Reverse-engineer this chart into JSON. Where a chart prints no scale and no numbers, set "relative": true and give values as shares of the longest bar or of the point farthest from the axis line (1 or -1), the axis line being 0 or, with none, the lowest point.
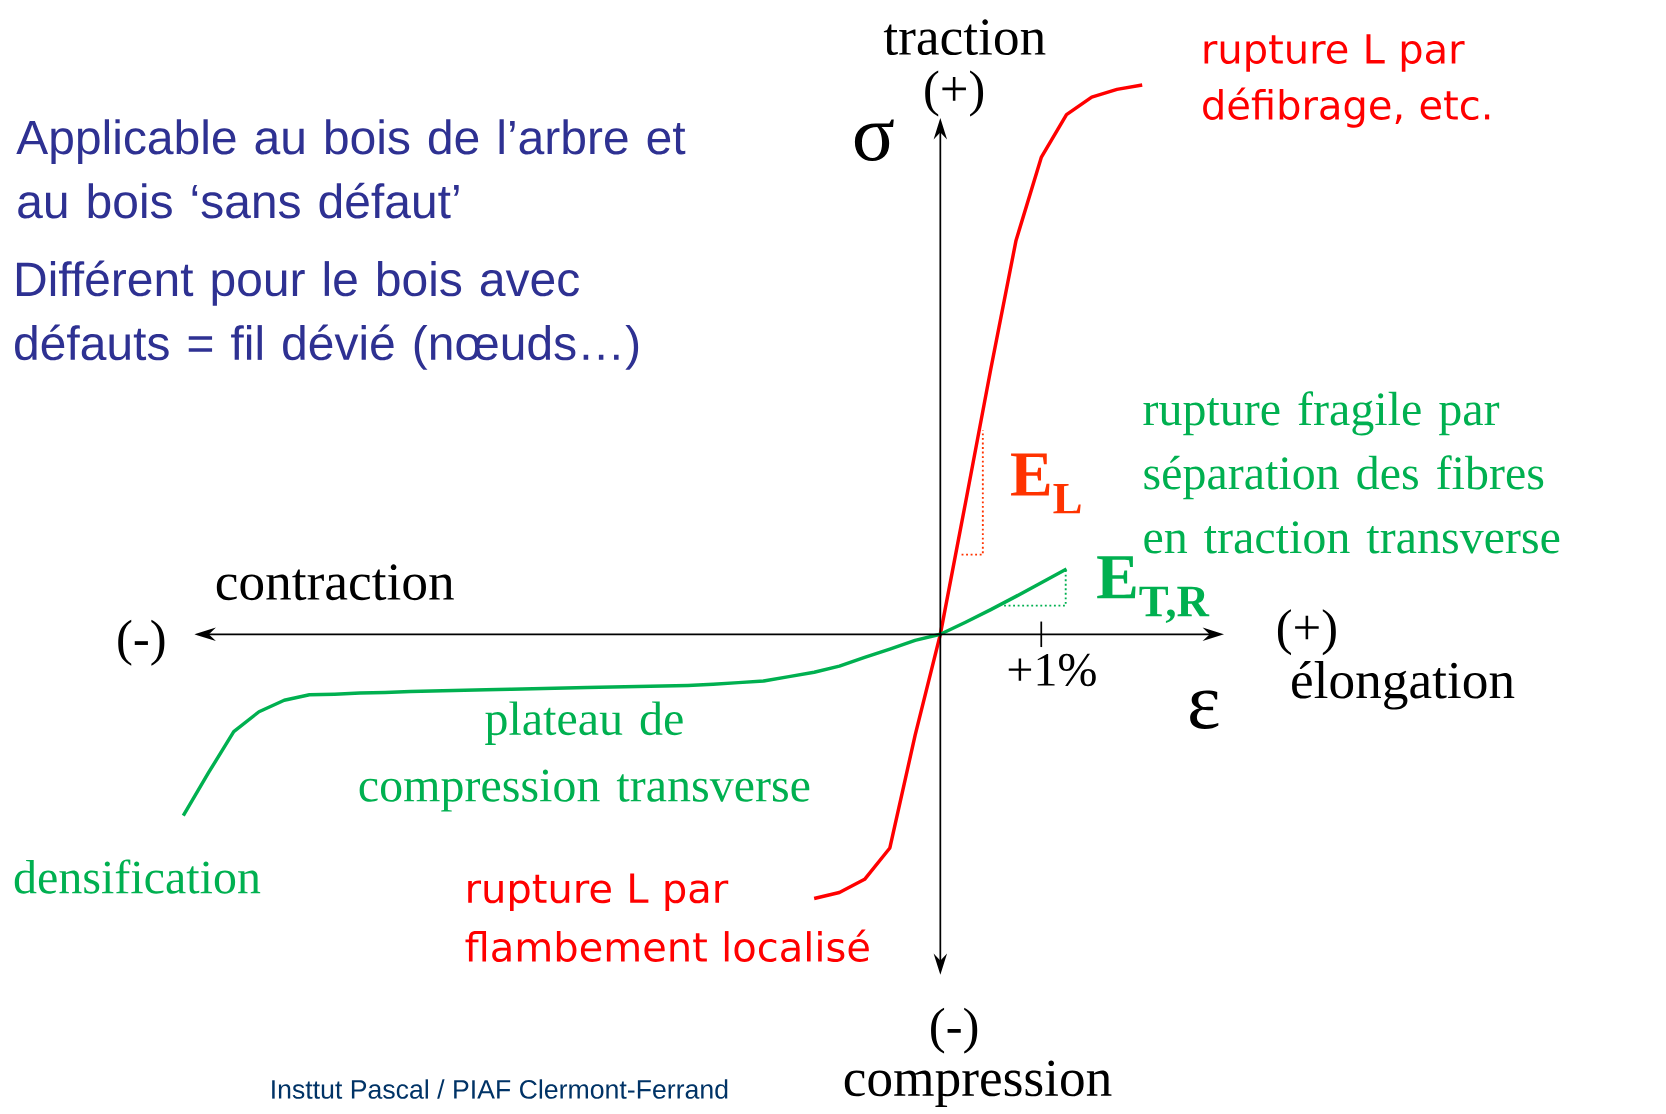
{
  "chart_data": {
    "type": "line",
    "relative": true,
    "xlabel": "ε",
    "ylabel": "σ",
    "categories": [
      null,
      null,
      null,
      null,
      null,
      null,
      null,
      null,
      null,
      null,
      null,
      null,
      null,
      null,
      null,
      null,
      null,
      null,
      null,
      null,
      null,
      null,
      null,
      null,
      null,
      null,
      null,
      null,
      null,
      null,
      null,
      null,
      null,
      null,
      null,
      null,
      null,
      null,
      null,
      null,
      null,
      null
    ],
    "series": [
      {
        "color": "#ff0000",
        "values": [
          null,
          null,
          null,
          null,
          null,
          null,
          null,
          null,
          null,
          null,
          null,
          null,
          null,
          null,
          null,
          null,
          null,
          null,
          null,
          null,
          null,
          null,
          null,
          null,
          null,
          -0.481,
          -0.47,
          -0.446,
          -0.389,
          -0.184,
          0,
          0.24,
          0.483,
          0.717,
          0.868,
          0.946,
          0.978,
          0.992,
          1.0,
          null,
          null,
          null
        ]
      },
      {
        "color": "#00b050",
        "values": [
          -0.33,
          -0.252,
          -0.177,
          -0.141,
          -0.12,
          -0.11,
          -0.109,
          -0.107,
          -0.106,
          -0.104,
          -0.103,
          -0.102,
          -0.101,
          -0.1,
          -0.099,
          -0.098,
          -0.097,
          -0.096,
          -0.095,
          -0.094,
          -0.093,
          -0.091,
          -0.088,
          -0.085,
          -0.077,
          -0.069,
          -0.058,
          -0.042,
          -0.027,
          -0.011,
          0,
          0.022,
          0.045,
          0.069,
          0.094,
          0.119,
          null,
          null,
          null,
          null,
          null,
          null
        ]
      }
    ],
    "annotations": [
      "traction",
      "(+)",
      "(-)",
      "compression",
      "contraction",
      "(-)",
      "(+)",
      "élongation",
      "Applicable au bois de l’arbre et au bois ‘sans défaut’",
      "Différent pour le bois avec défauts = fil dévié (nœuds…)",
      "rupture L par défibrage, etc.",
      "rupture fragile par séparation des fibres en traction transverse",
      "plateau de compression transverse",
      "densification",
      "rupture L par flambement localisé",
      "E$_{L}$",
      "E$_{T,R}$",
      "Insttut Pascal / PIAF Clermont-Ferrand",
      "+1%"
    ]
  }
}
